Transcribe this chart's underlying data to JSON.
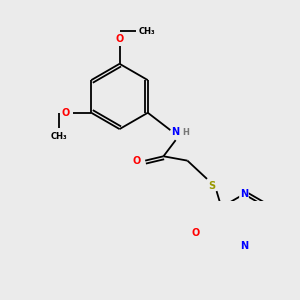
{
  "background_color": "#ebebeb",
  "atoms": {
    "colors": {
      "C": "#000000",
      "N": "#0000ff",
      "O": "#ff0000",
      "S": "#999900",
      "Cl": "#00bb00",
      "H": "#777777"
    }
  },
  "bond_lw": 1.3,
  "font_size": 7.0,
  "small_font": 6.0
}
